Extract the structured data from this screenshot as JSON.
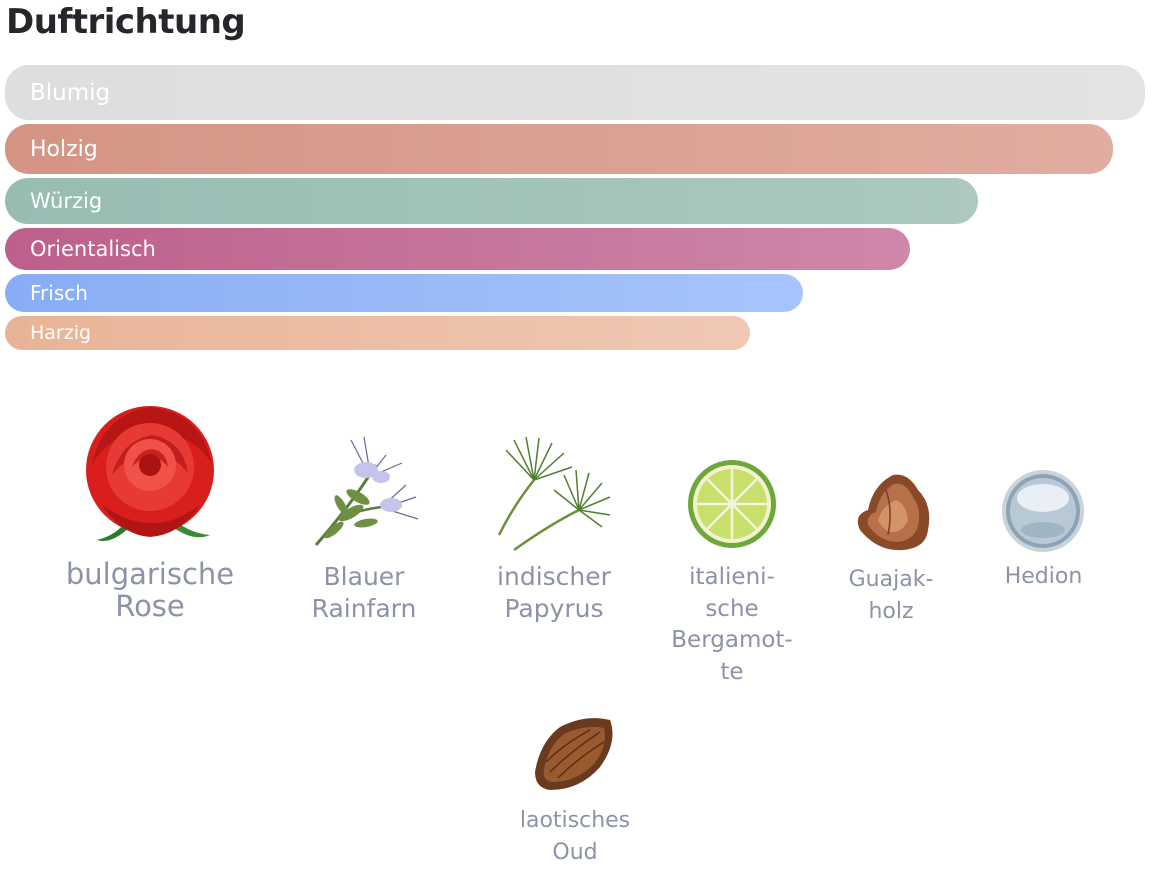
{
  "title": "Duftrichtung",
  "scent_directions": [
    {
      "label": "Blumig",
      "color": "#e0e0e0",
      "level": 1.0
    },
    {
      "label": "Holzig",
      "color": "#d99b8a",
      "level": 0.97
    },
    {
      "label": "Würzig",
      "color": "#a0c3ba",
      "level": 0.85
    },
    {
      "label": "Orientalisch",
      "color": "#c6709a",
      "level": 0.79
    },
    {
      "label": "Frisch",
      "color": "#95b6f8",
      "level": 0.7
    },
    {
      "label": "Harzig",
      "color": "#ecbea6",
      "level": 0.65
    }
  ],
  "notes": [
    {
      "icon": "rose-icon",
      "lines": [
        "bulgarische",
        "Rose"
      ]
    },
    {
      "icon": "tansy-flower-icon",
      "lines": [
        "Blauer",
        "Rainfarn"
      ]
    },
    {
      "icon": "papyrus-icon",
      "lines": [
        "indischer",
        "Papyrus"
      ]
    },
    {
      "icon": "bergamot-icon",
      "lines": [
        "italieni-",
        "sche",
        "Bergamot-",
        "te"
      ]
    },
    {
      "icon": "guaiac-wood-icon",
      "lines": [
        "Guajak-",
        "holz"
      ]
    },
    {
      "icon": "hedion-icon",
      "lines": [
        "Hedion"
      ]
    },
    {
      "icon": "oud-wood-icon",
      "lines": [
        "laotisches",
        "Oud"
      ]
    }
  ]
}
